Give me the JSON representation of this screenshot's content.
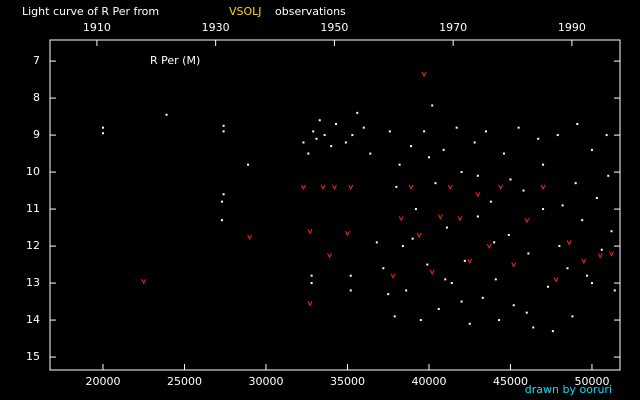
{
  "chart_data": {
    "type": "scatter",
    "title": "Light curve of R Per from",
    "title_source": "VSOLJ",
    "title_suffix": "observations",
    "annotation": "R Per (M)",
    "credit": "drawn by ooruri",
    "xlim": [
      16750,
      51720
    ],
    "xticks": [
      20000,
      25000,
      30000,
      35000,
      40000,
      45000,
      50000
    ],
    "x2lim": [
      1902.1,
      1998.1
    ],
    "x2ticks": [
      1910,
      1930,
      1950,
      1970,
      1990
    ],
    "ylim": [
      15.35,
      6.43
    ],
    "yticks": [
      7,
      8,
      9,
      10,
      11,
      12,
      13,
      14,
      15
    ],
    "series": [
      {
        "color": "#ffffff",
        "marker": "dot",
        "x": [
          20000,
          20000,
          23900,
          27400,
          27400,
          27400,
          27300,
          27300,
          28900,
          32300,
          32600,
          32800,
          32800,
          32900,
          33100,
          33300,
          33600,
          34000,
          34300,
          34900,
          35200,
          35200,
          35300,
          35600,
          36000,
          36400,
          36800,
          37200,
          37500,
          37600,
          37900,
          38200,
          38400,
          38600,
          38900,
          39200,
          39500,
          39700,
          39900,
          40200,
          40400,
          40600,
          40900,
          41100,
          41400,
          41700,
          42000,
          42200,
          42500,
          42800,
          43000,
          43300,
          43500,
          43800,
          44100,
          44300,
          44600,
          44900,
          45200,
          45500,
          45800,
          46100,
          46400,
          46700,
          47000,
          47300,
          47600,
          47900,
          48200,
          48500,
          48800,
          49100,
          49400,
          49700,
          50000,
          50300,
          50600,
          50900,
          51200,
          51400,
          38000,
          39000,
          40000,
          41000,
          42000,
          43000,
          44000,
          45000,
          46000,
          47000,
          48000,
          49000,
          50000,
          51000
        ],
        "values": [
          8.8,
          8.95,
          8.45,
          8.75,
          8.9,
          10.6,
          10.8,
          11.3,
          9.8,
          9.2,
          9.5,
          12.8,
          13.0,
          8.9,
          9.1,
          8.6,
          9.0,
          9.3,
          8.7,
          9.2,
          12.8,
          13.2,
          9.0,
          8.4,
          8.8,
          9.5,
          11.9,
          12.6,
          13.3,
          8.9,
          13.9,
          9.8,
          12.0,
          13.2,
          9.3,
          11.0,
          14.0,
          8.9,
          12.5,
          8.2,
          10.3,
          13.7,
          9.4,
          11.5,
          13.0,
          8.8,
          10.0,
          12.4,
          14.1,
          9.2,
          11.2,
          13.4,
          8.9,
          10.8,
          12.9,
          14.0,
          9.5,
          11.7,
          13.6,
          8.8,
          10.5,
          12.2,
          14.2,
          9.1,
          11.0,
          13.1,
          14.3,
          9.0,
          10.9,
          12.6,
          13.9,
          8.7,
          11.3,
          12.8,
          9.4,
          10.7,
          12.1,
          9.0,
          11.6,
          13.2,
          10.4,
          11.8,
          9.6,
          12.9,
          13.5,
          10.1,
          11.9,
          10.2,
          13.8,
          9.8,
          12.0,
          10.3,
          13.0,
          10.1
        ]
      },
      {
        "color": "#ff2020",
        "marker": "v",
        "x": [
          22500,
          29000,
          32300,
          32700,
          32700,
          33500,
          33900,
          34200,
          35000,
          35200,
          37800,
          38300,
          38900,
          39400,
          39700,
          40200,
          40700,
          41300,
          41900,
          42500,
          43000,
          43700,
          44400,
          45200,
          46000,
          47000,
          47800,
          48600,
          49500,
          50500,
          51200
        ],
        "values": [
          12.95,
          11.75,
          10.4,
          11.6,
          13.55,
          10.4,
          12.25,
          10.4,
          11.65,
          10.4,
          12.8,
          11.25,
          10.4,
          11.7,
          7.35,
          12.7,
          11.2,
          10.4,
          11.25,
          12.4,
          10.6,
          12.0,
          10.4,
          12.5,
          11.3,
          10.4,
          12.9,
          11.9,
          12.4,
          12.25,
          12.2
        ]
      }
    ]
  }
}
